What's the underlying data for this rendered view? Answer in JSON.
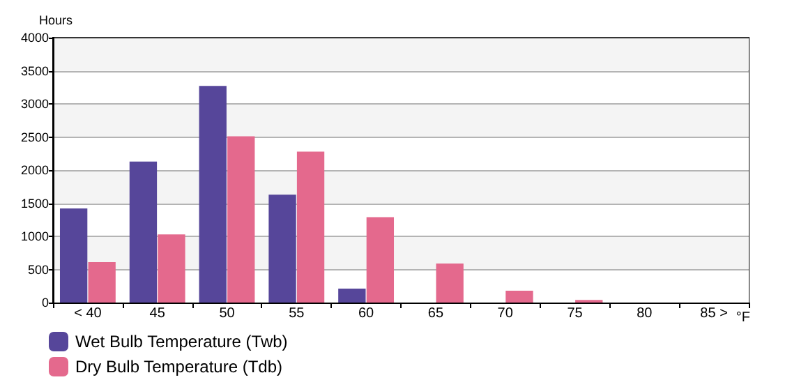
{
  "chart_data": {
    "type": "bar",
    "ylabel": "Hours",
    "xlabel": "°F",
    "categories": [
      "< 40",
      "45",
      "50",
      "55",
      "60",
      "65",
      "70",
      "75",
      "80",
      "85 >"
    ],
    "series": [
      {
        "name": "Wet Bulb Temperature (Twb)",
        "color": "#56469a",
        "values": [
          1420,
          2130,
          3270,
          1630,
          210,
          0,
          0,
          0,
          0,
          0
        ]
      },
      {
        "name": "Dry Bulb Temperature (Tdb)",
        "color": "#e4698d",
        "values": [
          610,
          1030,
          2510,
          2280,
          1290,
          590,
          180,
          40,
          0,
          0
        ]
      }
    ],
    "ylim": [
      0,
      4000
    ],
    "yticks": [
      0,
      500,
      1000,
      1500,
      2000,
      2500,
      3000,
      3500,
      4000
    ],
    "grid": "y",
    "legend": "bottom left"
  }
}
